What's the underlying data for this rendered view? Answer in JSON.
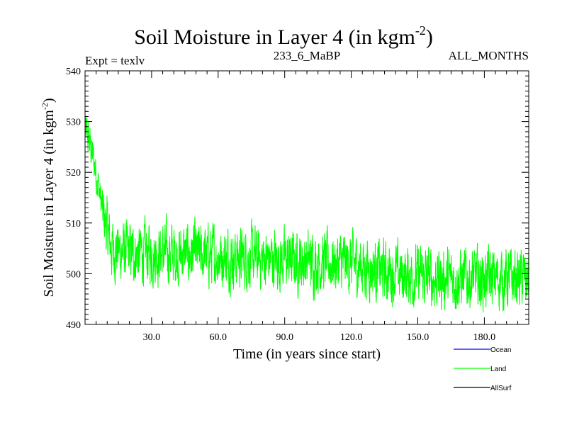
{
  "chart_data": {
    "type": "line",
    "title_main": "Soil Moisture in Layer 4 (in kgm",
    "title_sup": "-2",
    "title_close": ")",
    "header_left": "Expt = texlv",
    "header_center": "233_6_MaBP",
    "header_right": "ALL_MONTHS",
    "xlabel": "Time (in years since start)",
    "ylabel_main": "Soil Moisture in Layer 4 (in kgm",
    "ylabel_sup": "-2",
    "ylabel_close": ")",
    "xlim": [
      0,
      200
    ],
    "ylim": [
      490,
      540
    ],
    "xticks": [
      30,
      60,
      90,
      120,
      150,
      180
    ],
    "xtick_labels": [
      "30.0",
      "60.0",
      "90.0",
      "120.0",
      "150.0",
      "180.0"
    ],
    "yticks": [
      490,
      500,
      510,
      520,
      530,
      540
    ],
    "ytick_labels": [
      "490",
      "500",
      "510",
      "520",
      "530",
      "540"
    ],
    "series": [
      {
        "name": "Land",
        "color": "#00ff00",
        "samples_per_year": 12,
        "trend_years": [
          0,
          2,
          5,
          8,
          12,
          20,
          40,
          60,
          80,
          100,
          120,
          140,
          160,
          180,
          200
        ],
        "trend_values": [
          528,
          526,
          520,
          512,
          505,
          504,
          504,
          503.5,
          503,
          502.5,
          502,
          500,
          499,
          499,
          499
        ],
        "noise_amplitude": 4.5
      }
    ],
    "legend": [
      {
        "label": "Ocean",
        "color": "#0000ff"
      },
      {
        "label": "Land",
        "color": "#00ff00"
      },
      {
        "label": "AllSurf",
        "color": "#000000"
      }
    ]
  }
}
